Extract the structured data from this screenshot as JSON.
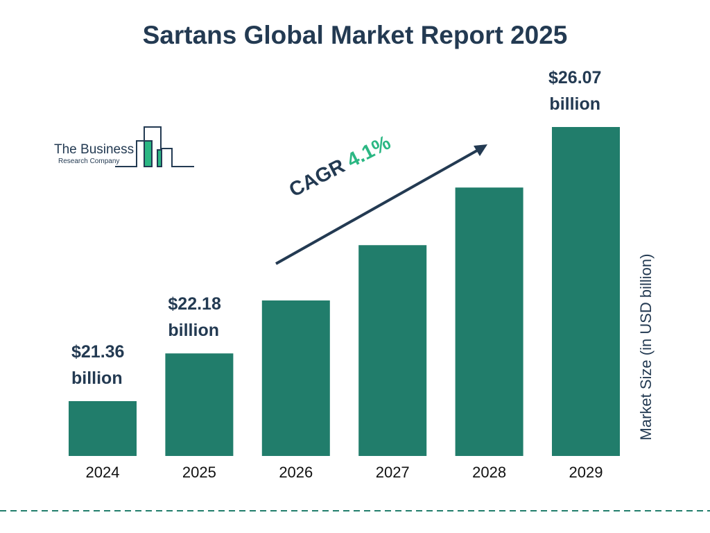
{
  "chart_data": {
    "type": "bar",
    "title": "Sartans Global Market Report 2025",
    "ylabel": "Market Size (in USD billion)",
    "categories": [
      "2024",
      "2025",
      "2026",
      "2027",
      "2028",
      "2029"
    ],
    "values": [
      21.36,
      22.18,
      23.09,
      24.04,
      25.03,
      26.07
    ],
    "data_labels": [
      {
        "index": 0,
        "line1": "$21.36",
        "line2": "billion"
      },
      {
        "index": 1,
        "line1": "$22.18",
        "line2": "billion"
      },
      {
        "index": 5,
        "line1": "$26.07",
        "line2": "billion"
      }
    ],
    "annotation": {
      "label": "CAGR",
      "value": "4.1%"
    },
    "bar_color": "#217d6b",
    "grid": false
  },
  "logo": {
    "line1": "The Business",
    "line2": "Research Company"
  }
}
